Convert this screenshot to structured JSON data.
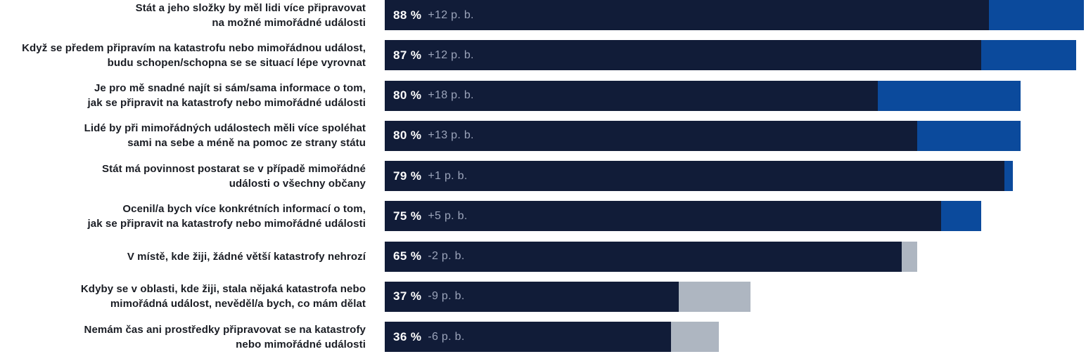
{
  "chart_data": {
    "type": "bar",
    "title": "",
    "orientation": "horizontal",
    "unit": "%",
    "change_unit": "p. b.",
    "layout_hints": {
      "value_axis_hidden": true,
      "grid": false,
      "legend": "none",
      "bar_label_position": "inside-left"
    },
    "colors": {
      "base_navy": "#111c38",
      "increase_blue": "#0b4a9c",
      "decrease_gray": "#aeb6c1",
      "value_text": "#ffffff",
      "change_text": "#9ba4ba",
      "category_text": "#1a1d24"
    },
    "rows": [
      {
        "label_lines": [
          "Stát a jeho složky by měl lidi více připravovat",
          "na možné mimořádné události"
        ],
        "value": 88,
        "change": 12,
        "pct_label": "88 %",
        "change_label": "+12 p. b."
      },
      {
        "label_lines": [
          "Když se předem připravím na katastrofu nebo mimořádnou událost,",
          "budu schopen/schopna se se situací lépe vyrovnat"
        ],
        "value": 87,
        "change": 12,
        "pct_label": "87 %",
        "change_label": "+12 p. b."
      },
      {
        "label_lines": [
          "Je pro mě snadné najít si sám/sama informace o tom,",
          "jak se připravit na katastrofy nebo mimořádné události"
        ],
        "value": 80,
        "change": 18,
        "pct_label": "80 %",
        "change_label": "+18 p. b."
      },
      {
        "label_lines": [
          "Lidé by při mimořádných událostech měli více spoléhat",
          "sami na sebe a méně na pomoc ze strany státu"
        ],
        "value": 80,
        "change": 13,
        "pct_label": "80 %",
        "change_label": "+13 p. b."
      },
      {
        "label_lines": [
          "Stát má povinnost postarat se v případě mimořádné",
          "události o všechny občany"
        ],
        "value": 79,
        "change": 1,
        "pct_label": "79 %",
        "change_label": "+1 p. b."
      },
      {
        "label_lines": [
          "Ocenil/a bych více konkrétních informací o tom,",
          "jak se připravit na katastrofy nebo mimořádné události"
        ],
        "value": 75,
        "change": 5,
        "pct_label": "75 %",
        "change_label": "+5 p. b."
      },
      {
        "label_lines": [
          "V místě, kde žiji, žádné větší katastrofy nehrozí"
        ],
        "value": 65,
        "change": -2,
        "pct_label": "65 %",
        "change_label": "-2 p. b."
      },
      {
        "label_lines": [
          "Kdyby se v oblasti, kde žiji, stala nějaká katastrofa nebo",
          "mimořádná událost, nevěděl/a bych, co mám dělat"
        ],
        "value": 37,
        "change": -9,
        "pct_label": "37 %",
        "change_label": "-9 p. b."
      },
      {
        "label_lines": [
          "Nemám čas ani prostředky připravovat se na katastrofy",
          "nebo mimořádné události"
        ],
        "value": 36,
        "change": -6,
        "pct_label": "36 %",
        "change_label": "-6 p. b."
      }
    ]
  }
}
